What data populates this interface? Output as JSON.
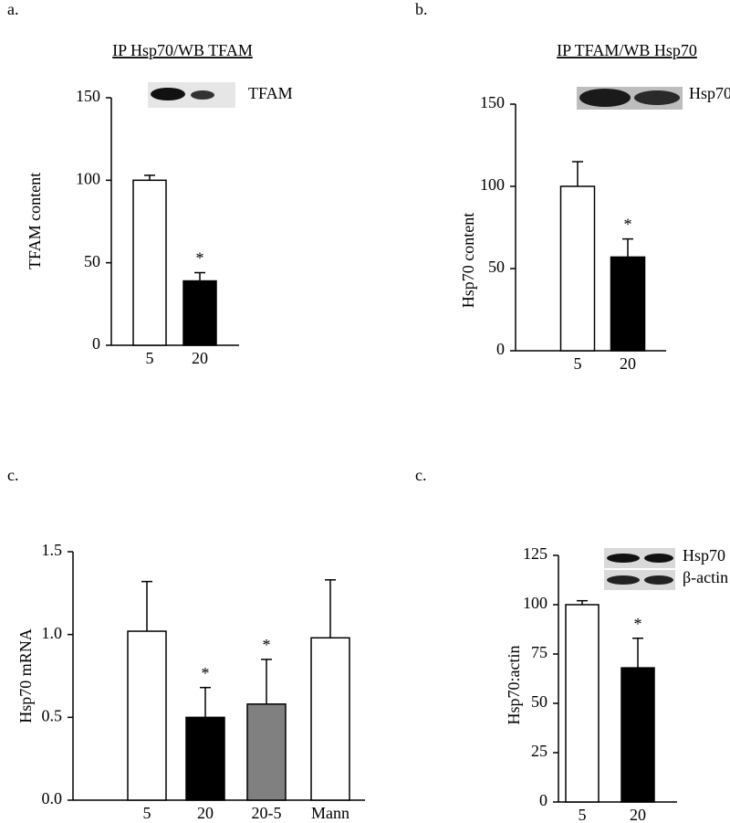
{
  "chart_data": [
    {
      "type": "bar",
      "panel_label": "a.",
      "title": "IP Hsp70/WB TFAM",
      "blot_labels": [
        "TFAM"
      ],
      "ylabel": "TFAM content",
      "categories": [
        "5",
        "20"
      ],
      "values": [
        100,
        39
      ],
      "errors": [
        3,
        5
      ],
      "colors": [
        "#ffffff",
        "#000000"
      ],
      "significance_labels": [
        null,
        "*"
      ],
      "ylim": [
        0,
        150
      ],
      "yticks": [
        0,
        50,
        100,
        150
      ]
    },
    {
      "type": "bar",
      "panel_label": "b.",
      "title": "IP TFAM/WB Hsp70",
      "blot_labels": [
        "Hsp70"
      ],
      "ylabel": "Hsp70 content",
      "categories": [
        "5",
        "20"
      ],
      "values": [
        100,
        57
      ],
      "errors": [
        15,
        11
      ],
      "colors": [
        "#ffffff",
        "#000000"
      ],
      "significance_labels": [
        null,
        "*"
      ],
      "ylim": [
        0,
        150
      ],
      "yticks": [
        0,
        50,
        100,
        150
      ]
    },
    {
      "type": "bar",
      "panel_label": "c.",
      "ylabel": "Hsp70 mRNA",
      "categories": [
        "5",
        "20",
        "20-5",
        "Mann"
      ],
      "values": [
        1.02,
        0.5,
        0.58,
        0.98
      ],
      "errors": [
        0.3,
        0.18,
        0.27,
        0.35
      ],
      "colors": [
        "#ffffff",
        "#000000",
        "#808080",
        "#ffffff"
      ],
      "significance_labels": [
        null,
        "*",
        "*",
        null
      ],
      "ylim": [
        0,
        1.5
      ],
      "yticks": [
        {
          "value": 0,
          "label": "0.0"
        },
        0.5,
        {
          "value": 1,
          "label": "1.0"
        },
        1.5
      ]
    },
    {
      "type": "bar",
      "panel_label": "c.",
      "blot_labels": [
        "Hsp70",
        "β-actin"
      ],
      "ylabel": "Hsp70:actin",
      "categories": [
        "5",
        "20"
      ],
      "values": [
        100,
        68
      ],
      "errors": [
        2,
        15
      ],
      "colors": [
        "#ffffff",
        "#000000"
      ],
      "significance_labels": [
        null,
        "*"
      ],
      "ylim": [
        0,
        125
      ],
      "yticks": [
        0,
        25,
        50,
        75,
        100,
        125
      ]
    }
  ]
}
